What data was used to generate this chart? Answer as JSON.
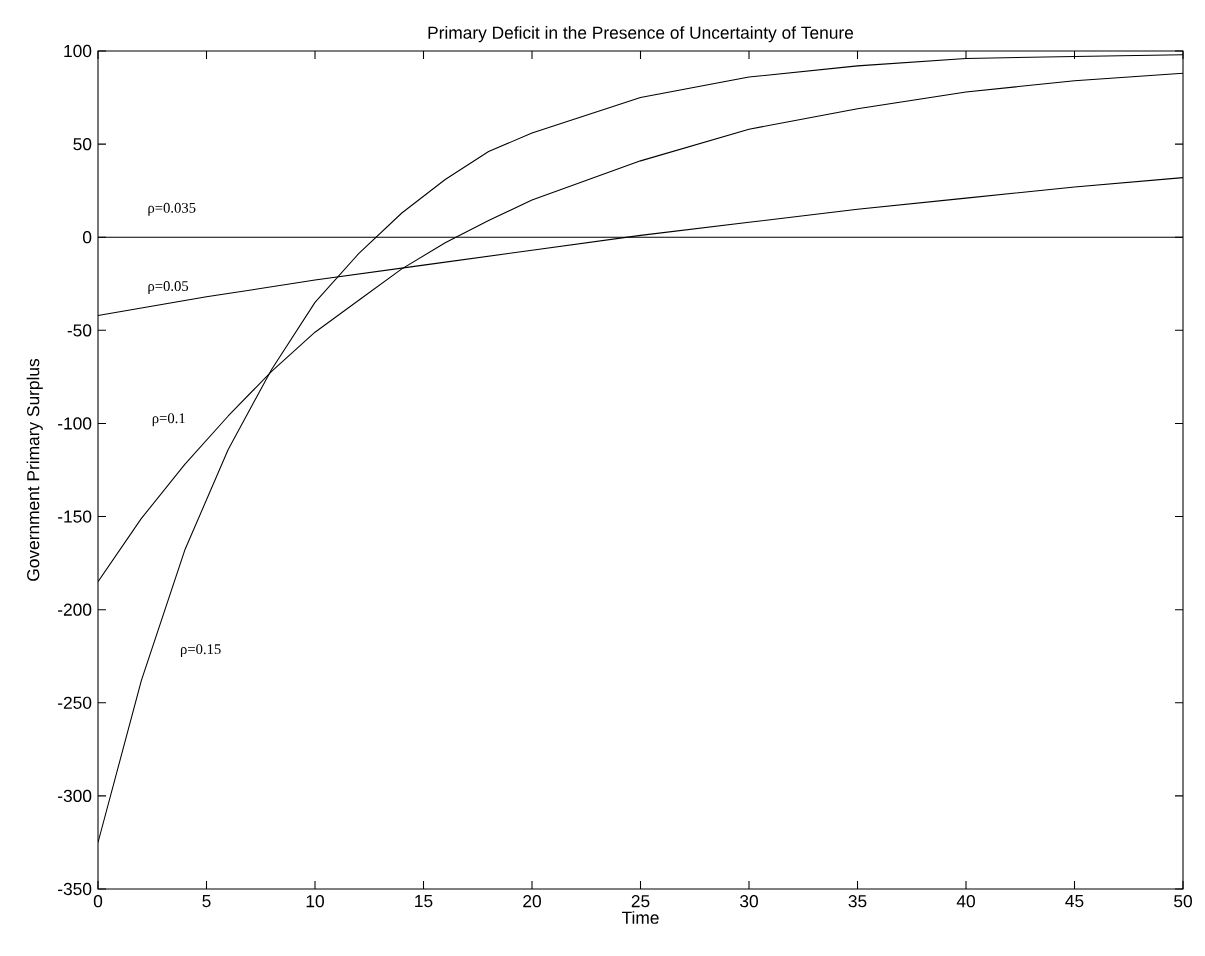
{
  "chart_data": {
    "type": "line",
    "title": "Primary Deficit in the Presence of Uncertainty of Tenure",
    "xlabel": "Time",
    "ylabel": "Government Primary Surplus",
    "xlim": [
      0,
      50
    ],
    "ylim": [
      -350,
      100
    ],
    "xticks": [
      0,
      5,
      10,
      15,
      20,
      25,
      30,
      35,
      40,
      45,
      50
    ],
    "yticks": [
      -350,
      -300,
      -250,
      -200,
      -150,
      -100,
      -50,
      0,
      50,
      100
    ],
    "grid": false,
    "legend": false,
    "marker": "none",
    "line_style": "solid",
    "series": [
      {
        "name": "ρ=0.035",
        "color": "#000000",
        "x": [
          0,
          50
        ],
        "values": [
          0,
          0
        ]
      },
      {
        "name": "ρ=0.05",
        "color": "#000000",
        "x": [
          0,
          5,
          10,
          15,
          20,
          25,
          30,
          35,
          40,
          45,
          50
        ],
        "values": [
          -42,
          -32,
          -23,
          -15,
          -7,
          1,
          8,
          15,
          21,
          27,
          32
        ]
      },
      {
        "name": "ρ=0.1",
        "color": "#000000",
        "x": [
          0,
          2,
          4,
          6,
          8,
          10,
          12,
          14,
          16,
          18,
          20,
          25,
          30,
          35,
          40,
          45,
          50
        ],
        "values": [
          -185,
          -151,
          -122,
          -96,
          -72,
          -51,
          -34,
          -17,
          -3,
          9,
          20,
          41,
          58,
          69,
          78,
          84,
          88
        ]
      },
      {
        "name": "ρ=0.15",
        "color": "#000000",
        "x": [
          0,
          2,
          4,
          6,
          8,
          10,
          12,
          14,
          16,
          18,
          20,
          25,
          30,
          35,
          40,
          45,
          50
        ],
        "values": [
          -325,
          -238,
          -168,
          -114,
          -71,
          -35,
          -9,
          13,
          31,
          46,
          56,
          75,
          86,
          92,
          96,
          97,
          98
        ]
      }
    ]
  }
}
